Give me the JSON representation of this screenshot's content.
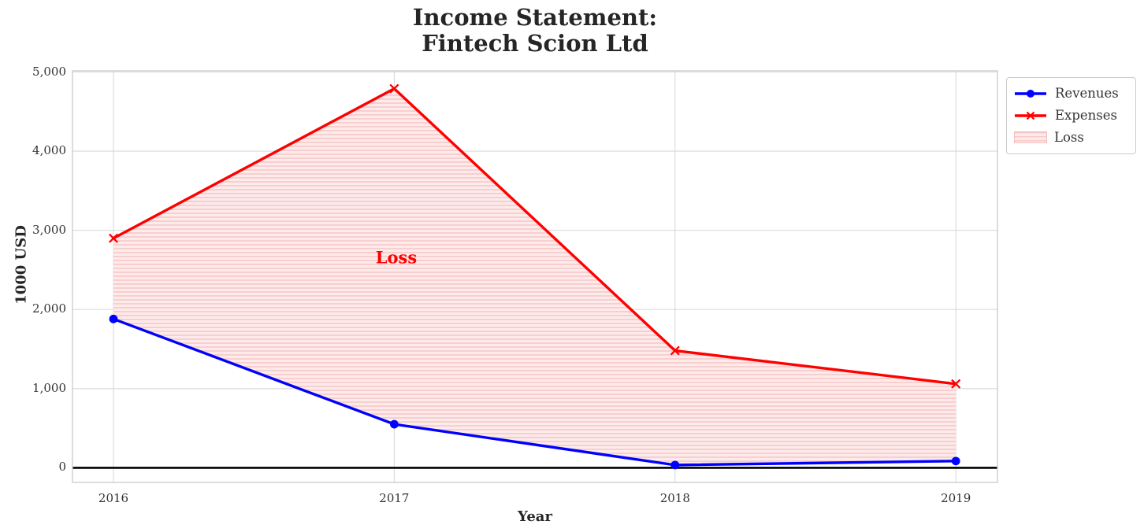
{
  "title": {
    "line1": "Income Statement:",
    "line2": "Fintech Scion Ltd"
  },
  "axes": {
    "xlabel": "Year",
    "ylabel": "1000 USD"
  },
  "legend": {
    "items": [
      {
        "label": "Revenues"
      },
      {
        "label": "Expenses"
      },
      {
        "label": "Loss"
      }
    ]
  },
  "annotation": {
    "label": "Loss"
  },
  "colors": {
    "revenues": "#0000ff",
    "expenses": "#ff0000",
    "loss_fill_bg": "#fdebeb",
    "loss_fill_hatch": "#f7caca",
    "gridline": "#d9d9d9",
    "spine": "#c9c9c9",
    "zero_line": "#000000",
    "text": "#333333"
  },
  "chart_data": {
    "type": "line",
    "title": "Income Statement: Fintech Scion Ltd",
    "xlabel": "Year",
    "ylabel": "1000 USD",
    "categories": [
      2016,
      2017,
      2018,
      2019
    ],
    "series": [
      {
        "name": "Revenues",
        "color": "#0000ff",
        "marker": "circle",
        "values": [
          1880,
          550,
          35,
          85
        ]
      },
      {
        "name": "Expenses",
        "color": "#ff0000",
        "marker": "x",
        "values": [
          2900,
          4790,
          1480,
          1060
        ]
      }
    ],
    "fill_between": {
      "name": "Loss",
      "between": [
        "Expenses",
        "Revenues"
      ],
      "hatch": "-"
    },
    "yticks": {
      "values": [
        0,
        1000,
        2000,
        3000,
        4000,
        5000
      ],
      "labels": [
        "0",
        "1,000",
        "2,000",
        "3,000",
        "4,000",
        "5,000"
      ]
    },
    "xticks": {
      "labels": [
        "2016",
        "2017",
        "2018",
        "2019"
      ]
    },
    "ylim": [
      -185,
      5020
    ],
    "grid": true,
    "zero_line": true,
    "legend_position": "outside-top-right",
    "annotations": [
      {
        "text": "Loss",
        "x": 2017.0,
        "y": 2660
      }
    ]
  }
}
